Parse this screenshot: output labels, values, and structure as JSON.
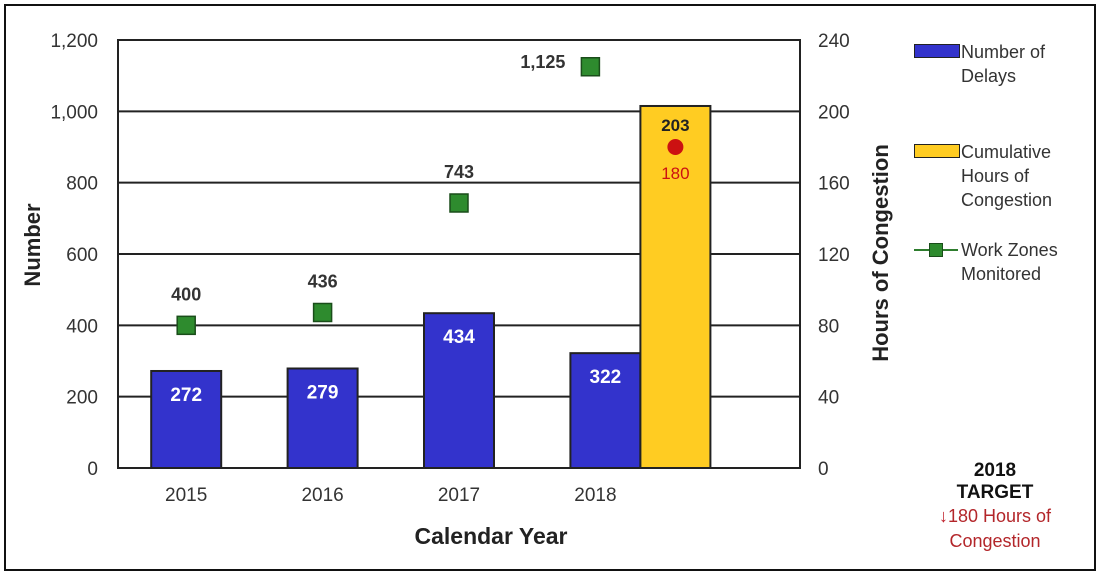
{
  "chart_data": {
    "type": "bar",
    "categories": [
      "2015",
      "2016",
      "2017",
      "2018"
    ],
    "series": [
      {
        "name": "Number of Delays",
        "type": "bar",
        "axis": "left",
        "color": "#3333cc",
        "values": [
          272,
          279,
          434,
          322
        ],
        "labels": [
          "272",
          "279",
          "434",
          "322"
        ]
      },
      {
        "name": "Cumulative Hours of Congestion",
        "type": "bar",
        "axis": "right",
        "color": "#ffcc22",
        "values": [
          null,
          null,
          null,
          203
        ],
        "labels": [
          "",
          "",
          "",
          "203"
        ]
      },
      {
        "name": "Work Zones Monitored",
        "type": "scatter",
        "axis": "left",
        "color": "#2e7d2e",
        "values": [
          400,
          436,
          743,
          1125
        ],
        "labels": [
          "400",
          "436",
          "743",
          "1,125"
        ]
      }
    ],
    "target_point": {
      "category": "2018",
      "value": 180,
      "axis": "right",
      "label": "180",
      "color": "#cc1111"
    },
    "xlabel": "Calendar Year",
    "ylabel": "Number",
    "y2label": "Hours of Congestion",
    "ylim": [
      0,
      1200
    ],
    "y2lim": [
      0,
      240
    ],
    "yticks": [
      0,
      200,
      400,
      600,
      800,
      1000,
      1200
    ],
    "yticklabels": [
      "0",
      "200",
      "400",
      "600",
      "800",
      "1,000",
      "1,200"
    ],
    "y2ticks": [
      0,
      40,
      80,
      120,
      160,
      200,
      240
    ],
    "y2ticklabels": [
      "0",
      "40",
      "80",
      "120",
      "160",
      "200",
      "240"
    ],
    "grid": true,
    "legend_position": "right"
  },
  "legend": {
    "delays": "Number of Delays",
    "hours": "Cumulative Hours of Congestion",
    "zones": "Work Zones Monitored"
  },
  "target": {
    "title_line1": "2018",
    "title_line2": "TARGET",
    "arrow": "↓",
    "note_line1": "180 Hours of",
    "note_line2": "Congestion"
  }
}
